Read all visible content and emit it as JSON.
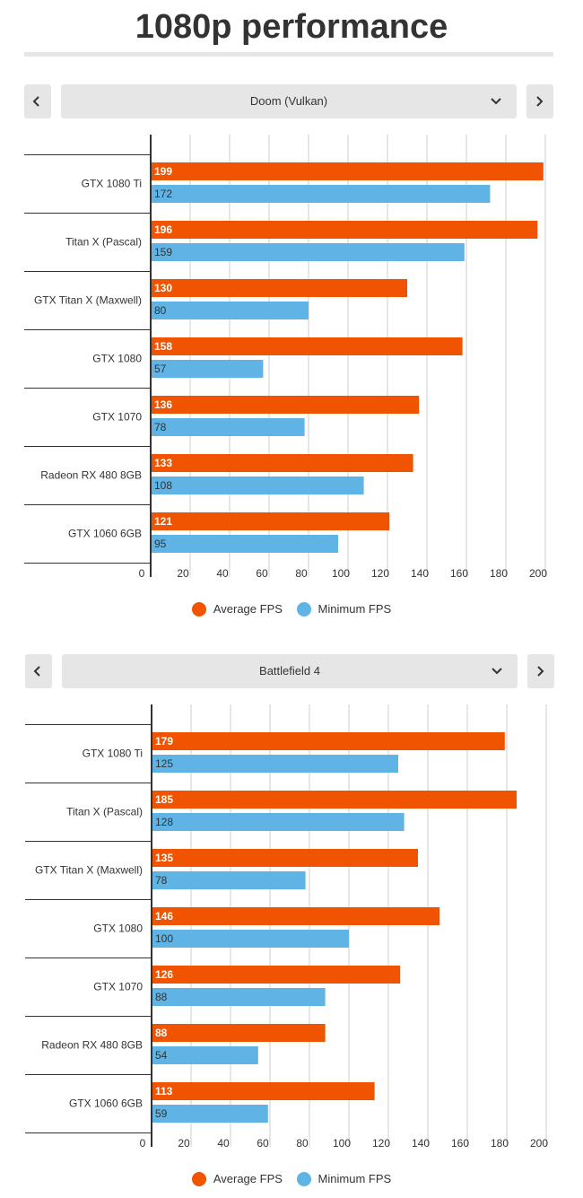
{
  "page": {
    "title": "1080p performance"
  },
  "colors": {
    "average": "#f05400",
    "minimum": "#5fb4e5",
    "grid": "#cfcfcf",
    "axis": "#333333",
    "control_bg": "#e6e6e6"
  },
  "icons": {
    "prev": "chevron-left-icon",
    "next": "chevron-right-icon",
    "dropdown": "chevron-down-icon"
  },
  "charts": [
    {
      "selector_label": "Doom (Vulkan)",
      "legend": {
        "average": "Average FPS",
        "minimum": "Minimum FPS"
      }
    },
    {
      "selector_label": "Battlefield 4",
      "legend": {
        "average": "Average FPS",
        "minimum": "Minimum FPS"
      }
    }
  ],
  "chart_data": [
    {
      "type": "bar",
      "orientation": "horizontal",
      "title": "Doom (Vulkan)",
      "categories": [
        "GTX 1080 Ti",
        "Titan X (Pascal)",
        "GTX Titan X (Maxwell)",
        "GTX 1080",
        "GTX 1070",
        "Radeon RX 480 8GB",
        "GTX 1060 6GB"
      ],
      "series": [
        {
          "name": "Average FPS",
          "values": [
            199,
            196,
            130,
            158,
            136,
            133,
            121
          ]
        },
        {
          "name": "Minimum FPS",
          "values": [
            172,
            159,
            80,
            57,
            78,
            108,
            95
          ]
        }
      ],
      "xlim": [
        0,
        200
      ],
      "xticks": [
        0,
        20,
        40,
        60,
        80,
        100,
        120,
        140,
        160,
        180,
        200
      ],
      "grid": true,
      "legend_position": "bottom"
    },
    {
      "type": "bar",
      "orientation": "horizontal",
      "title": "Battlefield 4",
      "categories": [
        "GTX 1080 Ti",
        "Titan X (Pascal)",
        "GTX Titan X (Maxwell)",
        "GTX 1080",
        "GTX 1070",
        "Radeon RX 480 8GB",
        "GTX 1060 6GB"
      ],
      "series": [
        {
          "name": "Average FPS",
          "values": [
            179,
            185,
            135,
            146,
            126,
            88,
            113
          ]
        },
        {
          "name": "Minimum FPS",
          "values": [
            125,
            128,
            78,
            100,
            88,
            54,
            59
          ]
        }
      ],
      "xlim": [
        0,
        200
      ],
      "xticks": [
        0,
        20,
        40,
        60,
        80,
        100,
        120,
        140,
        160,
        180,
        200
      ],
      "grid": true,
      "legend_position": "bottom"
    }
  ]
}
